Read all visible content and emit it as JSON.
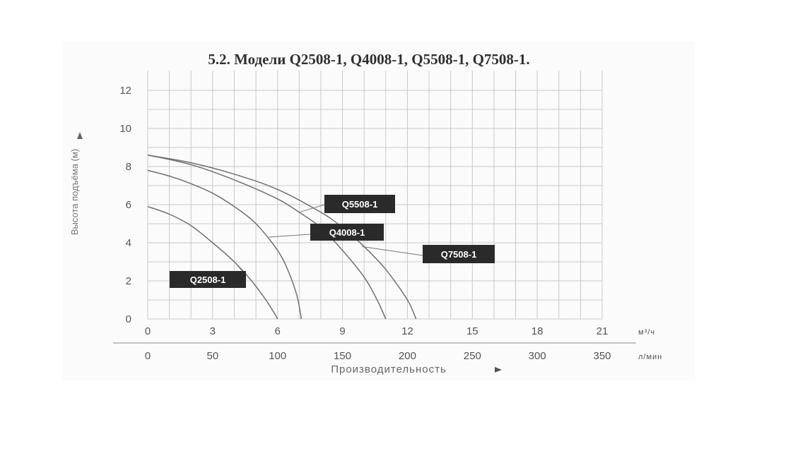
{
  "chart_data": {
    "type": "line",
    "title": "5.2. Модели Q2508-1, Q4008-1, Q5508-1, Q7508-1.",
    "ylabel": "Высота подъёма (м)",
    "xlabel": "Производительность",
    "x_unit": "м³/ч",
    "x2_unit": "л/мин",
    "xlim": [
      0,
      21
    ],
    "ylim": [
      0,
      12
    ],
    "x_ticks": [
      "0",
      "3",
      "6",
      "9",
      "12",
      "15",
      "18",
      "21"
    ],
    "x2_ticks": [
      "0",
      "50",
      "100",
      "150",
      "200",
      "250",
      "300",
      "350"
    ],
    "y_ticks": [
      "0",
      "2",
      "4",
      "6",
      "8",
      "10",
      "12"
    ],
    "grid": true,
    "series": [
      {
        "name": "Q2508-1",
        "x": [
          0,
          1,
          2,
          3,
          4,
          4.8,
          5.4,
          5.8,
          6.0
        ],
        "y": [
          5.9,
          5.5,
          4.9,
          4.0,
          3.0,
          2.0,
          1.1,
          0.4,
          0
        ]
      },
      {
        "name": "Q4008-1",
        "x": [
          0,
          1,
          2,
          3,
          4,
          5,
          6,
          6.5,
          6.9,
          7.1
        ],
        "y": [
          7.8,
          7.5,
          7.1,
          6.6,
          5.9,
          5.0,
          3.6,
          2.5,
          1.2,
          0
        ]
      },
      {
        "name": "Q5508-1",
        "x": [
          0,
          2,
          4,
          6,
          7,
          8,
          9,
          10,
          10.6,
          11.0
        ],
        "y": [
          8.6,
          8.1,
          7.3,
          6.3,
          5.6,
          4.8,
          3.6,
          2.2,
          1.0,
          0
        ]
      },
      {
        "name": "Q7508-1",
        "x": [
          0,
          2,
          4,
          6,
          8,
          9,
          10,
          11,
          12,
          12.4
        ],
        "y": [
          8.6,
          8.2,
          7.6,
          6.8,
          5.6,
          4.8,
          3.8,
          2.6,
          1.0,
          0
        ]
      }
    ]
  }
}
